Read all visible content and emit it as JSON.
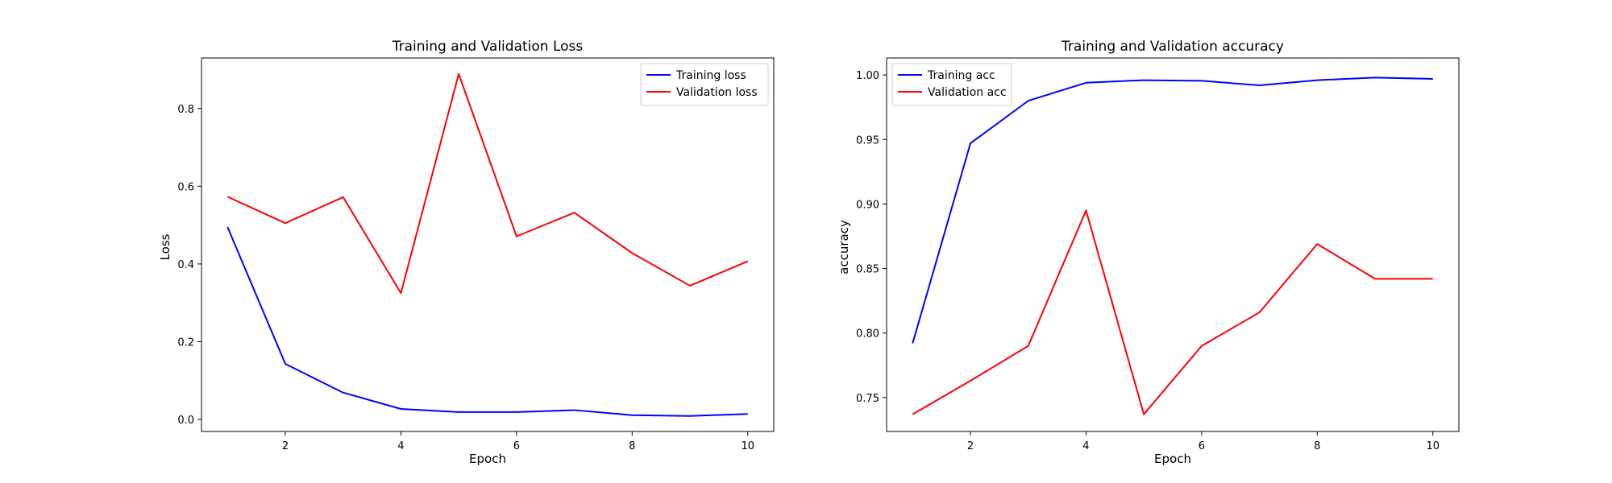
{
  "chart_data": [
    {
      "type": "line",
      "title": "Training and Validation Loss",
      "xlabel": "Epoch",
      "ylabel": "Loss",
      "x": [
        1,
        2,
        3,
        4,
        5,
        6,
        7,
        8,
        9,
        10
      ],
      "xlim": [
        0.55,
        10.45
      ],
      "ylim": [
        -0.031,
        0.93
      ],
      "xticks": [
        2,
        4,
        6,
        8,
        10
      ],
      "xtick_labels": [
        "2",
        "4",
        "6",
        "8",
        "10"
      ],
      "yticks": [
        0.0,
        0.2,
        0.4,
        0.6,
        0.8
      ],
      "ytick_labels": [
        "0.0",
        "0.2",
        "0.4",
        "0.6",
        "0.8"
      ],
      "grid": false,
      "legend_position": "upper right",
      "series": [
        {
          "name": "Training loss",
          "color": "#0000ff",
          "values": [
            0.495,
            0.143,
            0.069,
            0.027,
            0.019,
            0.019,
            0.024,
            0.011,
            0.009,
            0.014
          ]
        },
        {
          "name": "Validation loss",
          "color": "#ff0000",
          "values": [
            0.573,
            0.505,
            0.572,
            0.325,
            0.889,
            0.471,
            0.532,
            0.428,
            0.344,
            0.407
          ]
        }
      ]
    },
    {
      "type": "line",
      "title": "Training and Validation accuracy",
      "xlabel": "Epoch",
      "ylabel": "accuracy",
      "x": [
        1,
        2,
        3,
        4,
        5,
        6,
        7,
        8,
        9,
        10
      ],
      "xlim": [
        0.55,
        10.45
      ],
      "ylim": [
        0.7237,
        1.0132
      ],
      "xticks": [
        2,
        4,
        6,
        8,
        10
      ],
      "xtick_labels": [
        "2",
        "4",
        "6",
        "8",
        "10"
      ],
      "yticks": [
        0.75,
        0.8,
        0.85,
        0.9,
        0.95,
        1.0
      ],
      "ytick_labels": [
        "0.75",
        "0.80",
        "0.85",
        "0.90",
        "0.95",
        "1.00"
      ],
      "grid": false,
      "legend_position": "upper left",
      "series": [
        {
          "name": "Training acc",
          "color": "#0000ff",
          "values": [
            0.792,
            0.947,
            0.98,
            0.994,
            0.996,
            0.9955,
            0.992,
            0.996,
            0.998,
            0.997
          ]
        },
        {
          "name": "Validation acc",
          "color": "#ff0000",
          "values": [
            0.737,
            0.763,
            0.79,
            0.895,
            0.737,
            0.79,
            0.816,
            0.869,
            0.842,
            0.842
          ]
        }
      ]
    }
  ]
}
